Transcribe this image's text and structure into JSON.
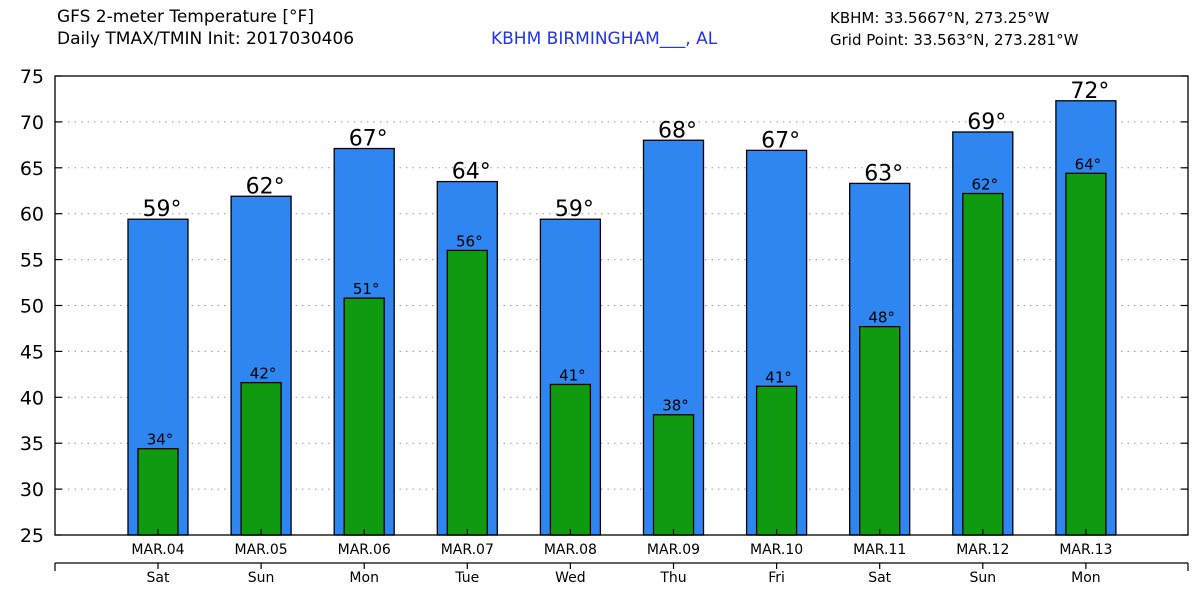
{
  "header": {
    "title_line1": "GFS 2-meter Temperature [°F]",
    "title_line2": "Daily TMAX/TMIN Init: 2017030406",
    "station_name": "KBHM BIRMINGHAM___, AL",
    "station_coords": "KBHM: 33.5667°N, 273.25°W",
    "grid_point": "Grid Point: 33.563°N, 273.281°W"
  },
  "colors": {
    "max_bar": "#2f86f0",
    "min_bar": "#0f9a0f",
    "station_text": "#2233ee",
    "grid": "#999999"
  },
  "chart_data": {
    "type": "bar",
    "title": "GFS 2-meter Temperature [°F]",
    "subtitle": "Daily TMAX/TMIN Init: 2017030406",
    "xlabel": "",
    "ylabel": "",
    "ylim": [
      25,
      75
    ],
    "yticks": [
      25,
      30,
      35,
      40,
      45,
      50,
      55,
      60,
      65,
      70,
      75
    ],
    "grid": true,
    "categories": [
      "MAR.04",
      "MAR.05",
      "MAR.06",
      "MAR.07",
      "MAR.08",
      "MAR.09",
      "MAR.10",
      "MAR.11",
      "MAR.12",
      "MAR.13"
    ],
    "weekdays": [
      "Sat",
      "Sun",
      "Mon",
      "Tue",
      "Wed",
      "Thu",
      "Fri",
      "Sat",
      "Sun",
      "Mon"
    ],
    "series": [
      {
        "name": "TMAX",
        "values": [
          59.4,
          61.9,
          67.1,
          63.5,
          59.4,
          68.0,
          66.9,
          63.3,
          68.9,
          72.3
        ],
        "labels": [
          "59°",
          "62°",
          "67°",
          "64°",
          "59°",
          "68°",
          "67°",
          "63°",
          "69°",
          "72°"
        ]
      },
      {
        "name": "TMIN",
        "values": [
          34.4,
          41.6,
          50.8,
          56.0,
          41.4,
          38.1,
          41.2,
          47.7,
          62.2,
          64.4
        ],
        "labels": [
          "34°",
          "42°",
          "51°",
          "56°",
          "41°",
          "38°",
          "41°",
          "48°",
          "62°",
          "64°"
        ]
      }
    ]
  }
}
